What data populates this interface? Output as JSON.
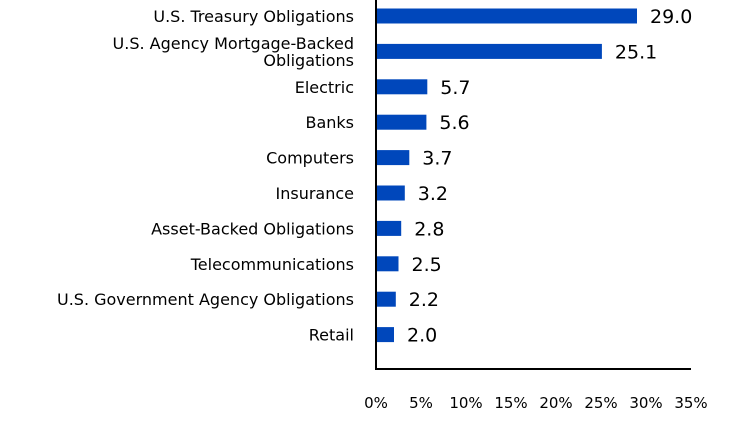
{
  "chart_data": {
    "type": "bar",
    "orientation": "horizontal",
    "categories": [
      [
        "U.S. Treasury Obligations"
      ],
      [
        "U.S. Agency Mortgage-Backed",
        "Obligations"
      ],
      [
        "Electric"
      ],
      [
        "Banks"
      ],
      [
        "Computers"
      ],
      [
        "Insurance"
      ],
      [
        "Asset-Backed Obligations"
      ],
      [
        "Telecommunications"
      ],
      [
        "U.S. Government Agency Obligations"
      ],
      [
        "Retail"
      ]
    ],
    "values": [
      29.0,
      25.1,
      5.7,
      5.6,
      3.7,
      3.2,
      2.8,
      2.5,
      2.2,
      2.0
    ],
    "value_labels": [
      "29.0",
      "25.1",
      "5.7",
      "5.6",
      "3.7",
      "3.2",
      "2.8",
      "2.5",
      "2.2",
      "2.0"
    ],
    "x_ticks": [
      0,
      5,
      10,
      15,
      20,
      25,
      30,
      35
    ],
    "x_tick_labels": [
      "0%",
      "5%",
      "10%",
      "15%",
      "20%",
      "25%",
      "30%",
      "35%"
    ],
    "xlim": [
      0,
      35
    ],
    "grid": false,
    "bar_color": "#0047BB",
    "axis_color": "#000000"
  }
}
